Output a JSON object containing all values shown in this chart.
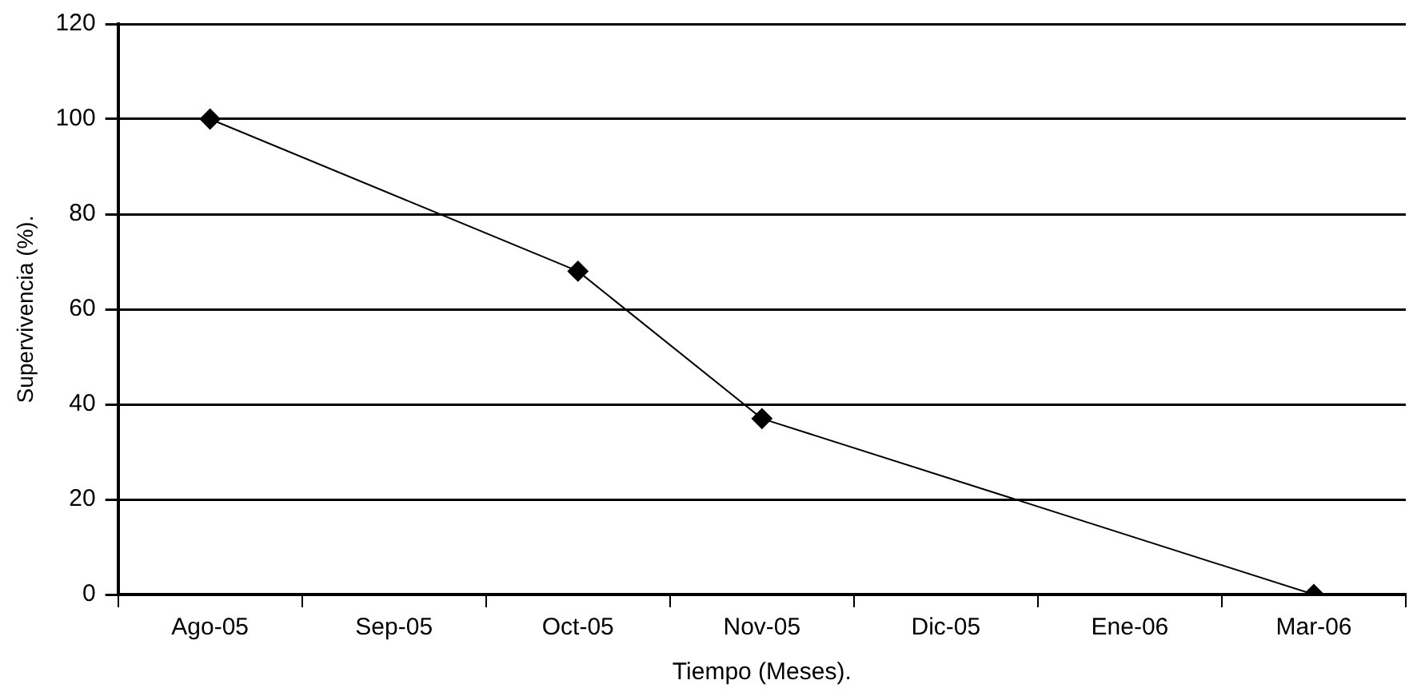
{
  "chart_data": {
    "type": "line",
    "xlabel": "Tiempo (Meses).",
    "ylabel": "Supervivencia (%).",
    "categories": [
      "Ago-05",
      "Sep-05",
      "Oct-05",
      "Nov-05",
      "Dic-05",
      "Ene-06",
      "Mar-06"
    ],
    "series": [
      {
        "color": "#000000",
        "values": [
          100,
          null,
          68,
          37,
          null,
          null,
          0
        ]
      }
    ],
    "ylim": [
      0,
      120
    ],
    "yticks": [
      0,
      20,
      40,
      60,
      80,
      100,
      120
    ],
    "grid": "y",
    "legend": false,
    "marker": "diamond",
    "line_style": "solid"
  }
}
